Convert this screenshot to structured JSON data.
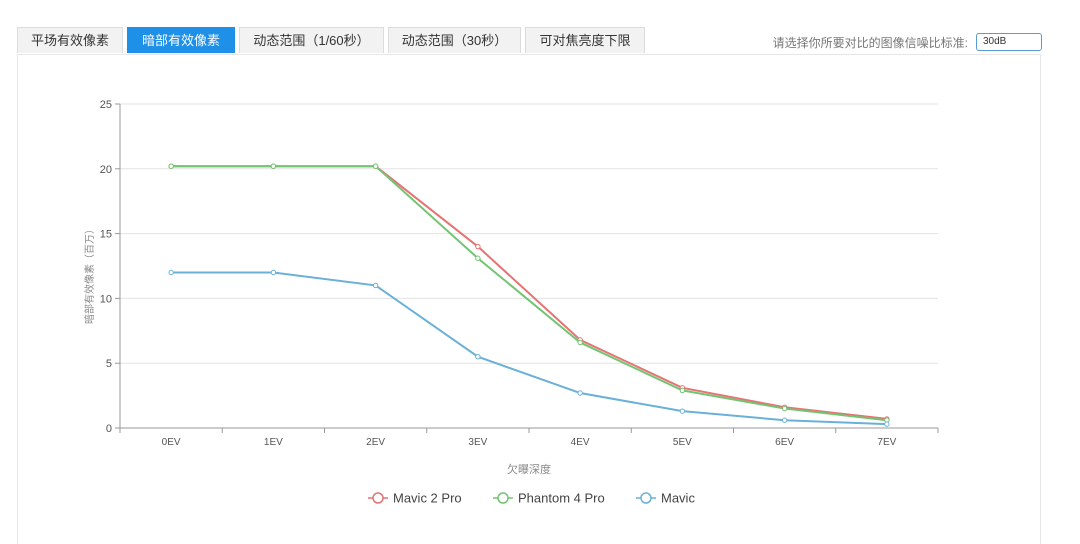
{
  "tabs": [
    {
      "label": "平场有效像素",
      "active": false
    },
    {
      "label": "暗部有效像素",
      "active": true
    },
    {
      "label": "动态范围（1/60秒）",
      "active": false
    },
    {
      "label": "动态范围（30秒）",
      "active": false
    },
    {
      "label": "可对焦亮度下限",
      "active": false
    }
  ],
  "selector": {
    "label": "请选择你所要对比的图像信噪比标准:",
    "value": "30dB"
  },
  "chart_data": {
    "type": "line",
    "xlabel": "欠曝深度",
    "ylabel": "暗部有效像素（百万）",
    "categories": [
      "0EV",
      "1EV",
      "2EV",
      "3EV",
      "4EV",
      "5EV",
      "6EV",
      "7EV"
    ],
    "ylim": [
      0,
      25
    ],
    "yticks": [
      0,
      5,
      10,
      15,
      20,
      25
    ],
    "grid": true,
    "legend_position": "bottom-center",
    "series": [
      {
        "name": "Mavic 2 Pro",
        "color": "#e57373",
        "values": [
          20.2,
          20.2,
          20.2,
          14.0,
          6.8,
          3.1,
          1.6,
          0.7
        ]
      },
      {
        "name": "Phantom 4 Pro",
        "color": "#72c472",
        "values": [
          20.2,
          20.2,
          20.2,
          13.1,
          6.6,
          2.9,
          1.5,
          0.6
        ]
      },
      {
        "name": "Mavic",
        "color": "#6ab0d8",
        "values": [
          12.0,
          12.0,
          11.0,
          5.5,
          2.7,
          1.3,
          0.6,
          0.3
        ]
      }
    ]
  }
}
